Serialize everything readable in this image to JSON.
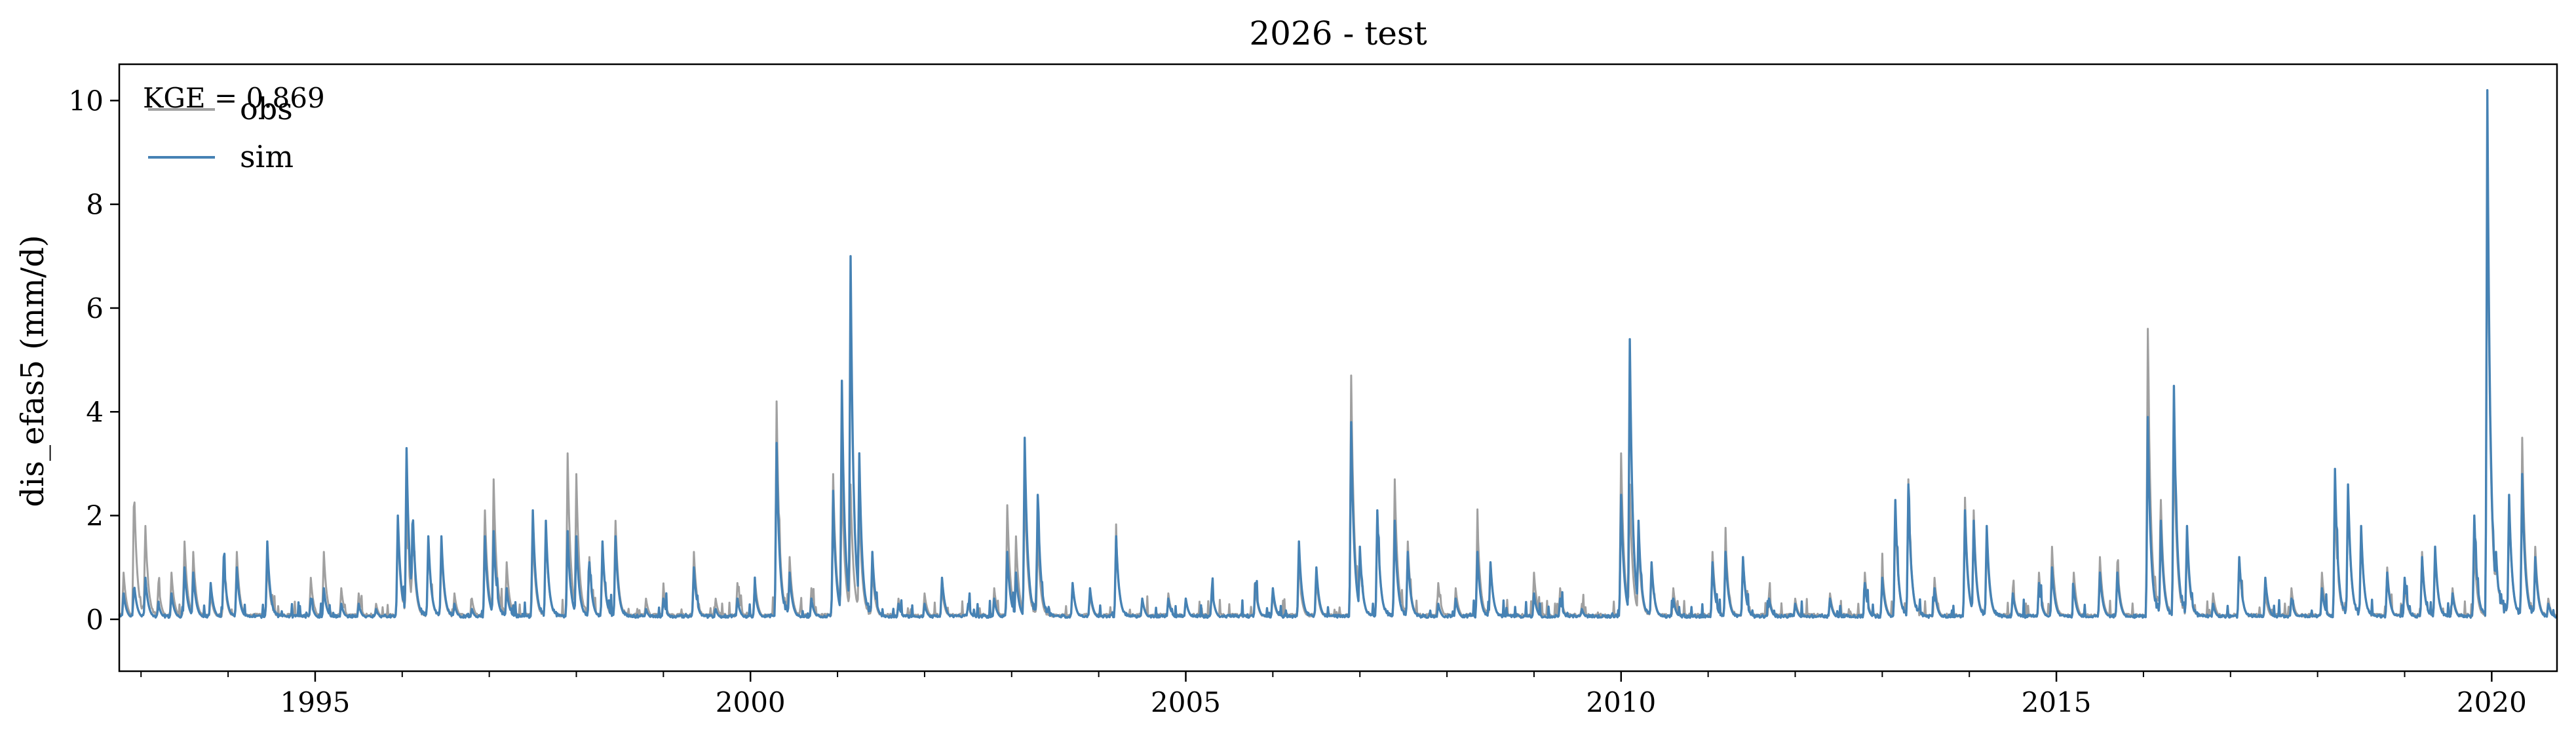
{
  "chart_data": {
    "type": "line",
    "title": "2026 - test",
    "xlabel": "",
    "ylabel": "dis_efas5 (mm/d)",
    "xlim": [
      1992.75,
      2020.75
    ],
    "ylim": [
      -1.0,
      10.7
    ],
    "x_ticks": [
      1995,
      2000,
      2005,
      2010,
      2015,
      2020
    ],
    "x_tick_labels": [
      "1995",
      "2000",
      "2005",
      "2010",
      "2015",
      "2020"
    ],
    "y_ticks": [
      0,
      2,
      4,
      6,
      8,
      10
    ],
    "y_tick_labels": [
      "0",
      "2",
      "4",
      "6",
      "8",
      "10"
    ],
    "grid": false,
    "legend": {
      "placement": "top-left",
      "entries": [
        "obs",
        "sim"
      ]
    },
    "annotation": "KGE = 0.869",
    "series": [
      {
        "name": "obs",
        "color": "#a0a0a0",
        "baseline": 0.05,
        "peaks": [
          [
            1992.8,
            0.9
          ],
          [
            1992.92,
            2.6
          ],
          [
            1993.05,
            1.8
          ],
          [
            1993.2,
            0.7
          ],
          [
            1993.35,
            0.9
          ],
          [
            1993.5,
            1.5
          ],
          [
            1993.6,
            1.3
          ],
          [
            1993.8,
            0.5
          ],
          [
            1993.95,
            1.0
          ],
          [
            1994.1,
            1.3
          ],
          [
            1994.45,
            1.2
          ],
          [
            1994.95,
            0.8
          ],
          [
            1995.1,
            1.3
          ],
          [
            1995.3,
            0.6
          ],
          [
            1995.5,
            0.5
          ],
          [
            1995.7,
            0.3
          ],
          [
            1995.95,
            1.8
          ],
          [
            1996.05,
            2.2
          ],
          [
            1996.12,
            1.8
          ],
          [
            1996.3,
            1.5
          ],
          [
            1996.45,
            1.4
          ],
          [
            1996.6,
            0.5
          ],
          [
            1996.8,
            0.4
          ],
          [
            1996.95,
            2.1
          ],
          [
            1997.05,
            2.7
          ],
          [
            1997.2,
            1.1
          ],
          [
            1997.5,
            1.7
          ],
          [
            1997.65,
            1.8
          ],
          [
            1997.9,
            3.2
          ],
          [
            1998.0,
            2.8
          ],
          [
            1998.15,
            1.2
          ],
          [
            1998.3,
            1.4
          ],
          [
            1998.45,
            1.9
          ],
          [
            1998.8,
            0.4
          ],
          [
            1999.0,
            0.6
          ],
          [
            1999.35,
            1.3
          ],
          [
            1999.6,
            0.4
          ],
          [
            1999.85,
            0.7
          ],
          [
            2000.05,
            0.8
          ],
          [
            2000.3,
            4.2
          ],
          [
            2000.45,
            1.2
          ],
          [
            2000.7,
            0.6
          ],
          [
            2000.95,
            2.8
          ],
          [
            2001.05,
            2.9
          ],
          [
            2001.15,
            2.6
          ],
          [
            2001.25,
            2.3
          ],
          [
            2001.4,
            1.0
          ],
          [
            2001.7,
            0.4
          ],
          [
            2002.0,
            0.5
          ],
          [
            2002.2,
            0.6
          ],
          [
            2002.5,
            0.3
          ],
          [
            2002.8,
            0.6
          ],
          [
            2002.95,
            2.2
          ],
          [
            2003.05,
            1.6
          ],
          [
            2003.15,
            2.7
          ],
          [
            2003.3,
            1.6
          ],
          [
            2003.7,
            0.7
          ],
          [
            2003.9,
            0.5
          ],
          [
            2004.2,
            1.6
          ],
          [
            2004.5,
            0.4
          ],
          [
            2004.8,
            0.5
          ],
          [
            2005.0,
            0.4
          ],
          [
            2005.3,
            0.6
          ],
          [
            2005.8,
            0.6
          ],
          [
            2006.0,
            0.5
          ],
          [
            2006.3,
            1.0
          ],
          [
            2006.5,
            0.8
          ],
          [
            2006.9,
            4.7
          ],
          [
            2007.0,
            1.3
          ],
          [
            2007.2,
            2.1
          ],
          [
            2007.4,
            2.7
          ],
          [
            2007.55,
            1.5
          ],
          [
            2007.9,
            0.7
          ],
          [
            2008.1,
            0.6
          ],
          [
            2008.35,
            1.9
          ],
          [
            2008.5,
            1.1
          ],
          [
            2009.0,
            0.9
          ],
          [
            2009.3,
            0.6
          ],
          [
            2009.55,
            0.3
          ],
          [
            2010.0,
            3.2
          ],
          [
            2010.1,
            2.6
          ],
          [
            2010.2,
            1.6
          ],
          [
            2010.35,
            1.0
          ],
          [
            2010.6,
            0.6
          ],
          [
            2011.05,
            1.3
          ],
          [
            2011.2,
            1.6
          ],
          [
            2011.4,
            1.2
          ],
          [
            2011.7,
            0.5
          ],
          [
            2012.0,
            0.4
          ],
          [
            2012.4,
            0.5
          ],
          [
            2012.8,
            0.9
          ],
          [
            2013.0,
            1.0
          ],
          [
            2013.15,
            2.2
          ],
          [
            2013.3,
            2.7
          ],
          [
            2013.6,
            0.8
          ],
          [
            2013.95,
            2.3
          ],
          [
            2014.05,
            2.1
          ],
          [
            2014.2,
            1.6
          ],
          [
            2014.5,
            0.6
          ],
          [
            2014.8,
            0.9
          ],
          [
            2014.95,
            1.4
          ],
          [
            2015.2,
            0.9
          ],
          [
            2015.5,
            1.2
          ],
          [
            2015.7,
            1.1
          ],
          [
            2016.05,
            5.6
          ],
          [
            2016.2,
            2.3
          ],
          [
            2016.35,
            3.6
          ],
          [
            2016.5,
            1.6
          ],
          [
            2016.8,
            0.5
          ],
          [
            2017.1,
            1.2
          ],
          [
            2017.4,
            0.5
          ],
          [
            2017.7,
            0.6
          ],
          [
            2018.05,
            0.9
          ],
          [
            2018.2,
            2.4
          ],
          [
            2018.35,
            2.5
          ],
          [
            2018.5,
            1.8
          ],
          [
            2018.8,
            1.0
          ],
          [
            2019.0,
            0.7
          ],
          [
            2019.2,
            1.3
          ],
          [
            2019.35,
            1.3
          ],
          [
            2019.55,
            0.6
          ],
          [
            2019.8,
            1.4
          ],
          [
            2019.95,
            9.5
          ],
          [
            2020.05,
            1.3
          ],
          [
            2020.2,
            2.3
          ],
          [
            2020.35,
            3.5
          ],
          [
            2020.5,
            1.4
          ],
          [
            2020.65,
            0.4
          ]
        ]
      },
      {
        "name": "sim",
        "color": "#4682b4",
        "baseline": 0.03,
        "peaks": [
          [
            1992.8,
            0.5
          ],
          [
            1992.92,
            0.7
          ],
          [
            1993.05,
            0.8
          ],
          [
            1993.2,
            0.3
          ],
          [
            1993.35,
            0.5
          ],
          [
            1993.5,
            1.0
          ],
          [
            1993.6,
            0.9
          ],
          [
            1993.8,
            0.7
          ],
          [
            1993.95,
            1.2
          ],
          [
            1994.1,
            1.0
          ],
          [
            1994.45,
            1.5
          ],
          [
            1994.95,
            0.4
          ],
          [
            1995.1,
            0.6
          ],
          [
            1995.3,
            0.3
          ],
          [
            1995.5,
            0.3
          ],
          [
            1995.7,
            0.2
          ],
          [
            1995.95,
            2.0
          ],
          [
            1996.05,
            3.3
          ],
          [
            1996.12,
            2.2
          ],
          [
            1996.3,
            1.6
          ],
          [
            1996.45,
            1.6
          ],
          [
            1996.6,
            0.3
          ],
          [
            1996.8,
            0.2
          ],
          [
            1996.95,
            1.6
          ],
          [
            1997.05,
            1.7
          ],
          [
            1997.2,
            0.6
          ],
          [
            1997.5,
            2.1
          ],
          [
            1997.65,
            1.9
          ],
          [
            1997.9,
            1.7
          ],
          [
            1998.0,
            1.6
          ],
          [
            1998.15,
            1.1
          ],
          [
            1998.3,
            1.5
          ],
          [
            1998.45,
            1.6
          ],
          [
            1998.8,
            0.2
          ],
          [
            1999.0,
            0.4
          ],
          [
            1999.35,
            1.0
          ],
          [
            1999.6,
            0.2
          ],
          [
            1999.85,
            0.4
          ],
          [
            2000.05,
            0.6
          ],
          [
            2000.3,
            3.4
          ],
          [
            2000.45,
            0.9
          ],
          [
            2000.7,
            0.4
          ],
          [
            2000.95,
            2.3
          ],
          [
            2001.05,
            4.6
          ],
          [
            2001.15,
            7.0
          ],
          [
            2001.25,
            3.2
          ],
          [
            2001.4,
            1.3
          ],
          [
            2001.7,
            0.3
          ],
          [
            2002.0,
            0.3
          ],
          [
            2002.2,
            0.8
          ],
          [
            2002.5,
            0.3
          ],
          [
            2002.8,
            0.4
          ],
          [
            2002.95,
            1.3
          ],
          [
            2003.05,
            0.9
          ],
          [
            2003.15,
            3.5
          ],
          [
            2003.3,
            2.4
          ],
          [
            2003.7,
            0.7
          ],
          [
            2003.9,
            0.6
          ],
          [
            2004.2,
            1.6
          ],
          [
            2004.5,
            0.4
          ],
          [
            2004.8,
            0.4
          ],
          [
            2005.0,
            0.4
          ],
          [
            2005.3,
            0.6
          ],
          [
            2005.8,
            0.7
          ],
          [
            2006.0,
            0.6
          ],
          [
            2006.3,
            1.5
          ],
          [
            2006.5,
            1.0
          ],
          [
            2006.9,
            3.8
          ],
          [
            2007.0,
            1.4
          ],
          [
            2007.2,
            2.1
          ],
          [
            2007.4,
            1.9
          ],
          [
            2007.55,
            1.3
          ],
          [
            2007.9,
            0.3
          ],
          [
            2008.1,
            0.4
          ],
          [
            2008.35,
            1.3
          ],
          [
            2008.5,
            1.1
          ],
          [
            2009.0,
            0.5
          ],
          [
            2009.3,
            0.4
          ],
          [
            2009.55,
            0.2
          ],
          [
            2010.0,
            2.4
          ],
          [
            2010.1,
            5.4
          ],
          [
            2010.2,
            1.9
          ],
          [
            2010.35,
            1.1
          ],
          [
            2010.6,
            0.4
          ],
          [
            2011.05,
            1.1
          ],
          [
            2011.2,
            1.3
          ],
          [
            2011.4,
            1.2
          ],
          [
            2011.7,
            0.4
          ],
          [
            2012.0,
            0.3
          ],
          [
            2012.4,
            0.4
          ],
          [
            2012.8,
            0.7
          ],
          [
            2013.0,
            0.8
          ],
          [
            2013.15,
            2.3
          ],
          [
            2013.3,
            2.6
          ],
          [
            2013.6,
            0.6
          ],
          [
            2013.95,
            2.1
          ],
          [
            2014.05,
            1.9
          ],
          [
            2014.2,
            1.8
          ],
          [
            2014.5,
            0.5
          ],
          [
            2014.8,
            0.7
          ],
          [
            2014.95,
            1.0
          ],
          [
            2015.2,
            0.6
          ],
          [
            2015.5,
            0.9
          ],
          [
            2015.7,
            0.9
          ],
          [
            2016.05,
            3.9
          ],
          [
            2016.2,
            1.9
          ],
          [
            2016.35,
            4.5
          ],
          [
            2016.5,
            1.8
          ],
          [
            2016.8,
            0.3
          ],
          [
            2017.1,
            1.2
          ],
          [
            2017.4,
            0.8
          ],
          [
            2017.7,
            0.4
          ],
          [
            2018.05,
            0.6
          ],
          [
            2018.2,
            2.9
          ],
          [
            2018.35,
            2.6
          ],
          [
            2018.5,
            1.8
          ],
          [
            2018.8,
            0.9
          ],
          [
            2019.0,
            0.8
          ],
          [
            2019.2,
            1.2
          ],
          [
            2019.35,
            1.4
          ],
          [
            2019.55,
            0.5
          ],
          [
            2019.8,
            2.0
          ],
          [
            2019.95,
            10.2
          ],
          [
            2020.05,
            1.3
          ],
          [
            2020.2,
            2.4
          ],
          [
            2020.35,
            2.8
          ],
          [
            2020.5,
            1.2
          ],
          [
            2020.65,
            0.3
          ]
        ]
      }
    ]
  }
}
